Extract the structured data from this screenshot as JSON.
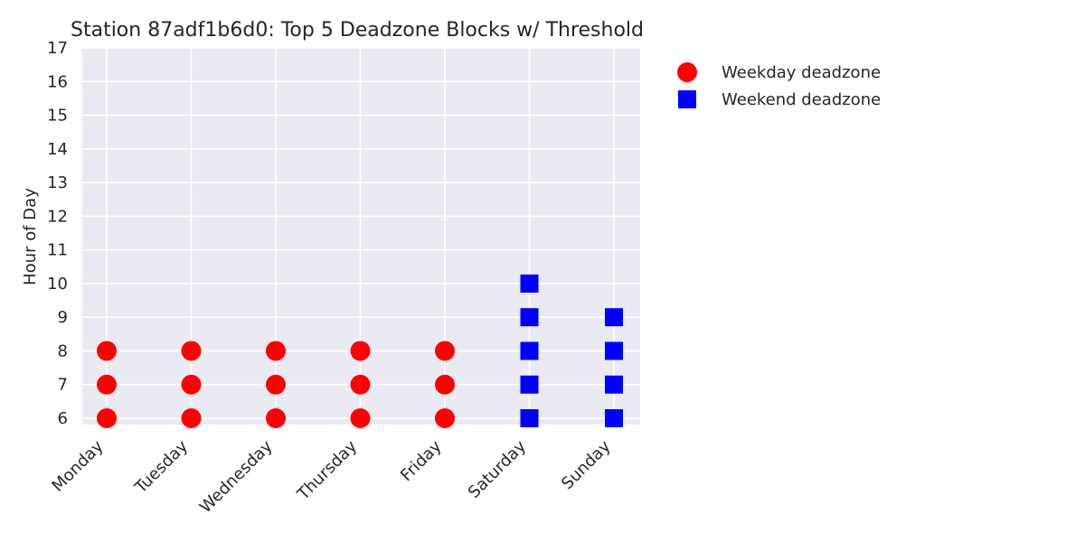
{
  "chart_data": {
    "type": "scatter",
    "title": "Station 87adf1b6d0: Top 5 Deadzone Blocks w/ Threshold",
    "xlabel": "",
    "ylabel": "Hour of Day",
    "categories": [
      "Monday",
      "Tuesday",
      "Wednesday",
      "Thursday",
      "Friday",
      "Saturday",
      "Sunday"
    ],
    "ylim": [
      6,
      17
    ],
    "yticks": [
      6,
      7,
      8,
      9,
      10,
      11,
      12,
      13,
      14,
      15,
      16,
      17
    ],
    "grid": true,
    "legend_position": "upper-right-outside",
    "series": [
      {
        "name": "Weekday deadzone",
        "marker": "circle",
        "color": "#ff0000",
        "points": [
          {
            "x": "Monday",
            "y": 6
          },
          {
            "x": "Monday",
            "y": 7
          },
          {
            "x": "Monday",
            "y": 8
          },
          {
            "x": "Tuesday",
            "y": 6
          },
          {
            "x": "Tuesday",
            "y": 7
          },
          {
            "x": "Tuesday",
            "y": 8
          },
          {
            "x": "Wednesday",
            "y": 6
          },
          {
            "x": "Wednesday",
            "y": 7
          },
          {
            "x": "Wednesday",
            "y": 8
          },
          {
            "x": "Thursday",
            "y": 6
          },
          {
            "x": "Thursday",
            "y": 7
          },
          {
            "x": "Thursday",
            "y": 8
          },
          {
            "x": "Friday",
            "y": 6
          },
          {
            "x": "Friday",
            "y": 7
          },
          {
            "x": "Friday",
            "y": 8
          }
        ]
      },
      {
        "name": "Weekend deadzone",
        "marker": "square",
        "color": "#0000ff",
        "points": [
          {
            "x": "Saturday",
            "y": 6
          },
          {
            "x": "Saturday",
            "y": 7
          },
          {
            "x": "Saturday",
            "y": 8
          },
          {
            "x": "Saturday",
            "y": 9
          },
          {
            "x": "Saturday",
            "y": 10
          },
          {
            "x": "Sunday",
            "y": 6
          },
          {
            "x": "Sunday",
            "y": 7
          },
          {
            "x": "Sunday",
            "y": 8
          },
          {
            "x": "Sunday",
            "y": 9
          }
        ]
      }
    ]
  },
  "colors": {
    "plot_background": "#eaeaf2",
    "grid": "#ffffff",
    "text": "#262626"
  }
}
